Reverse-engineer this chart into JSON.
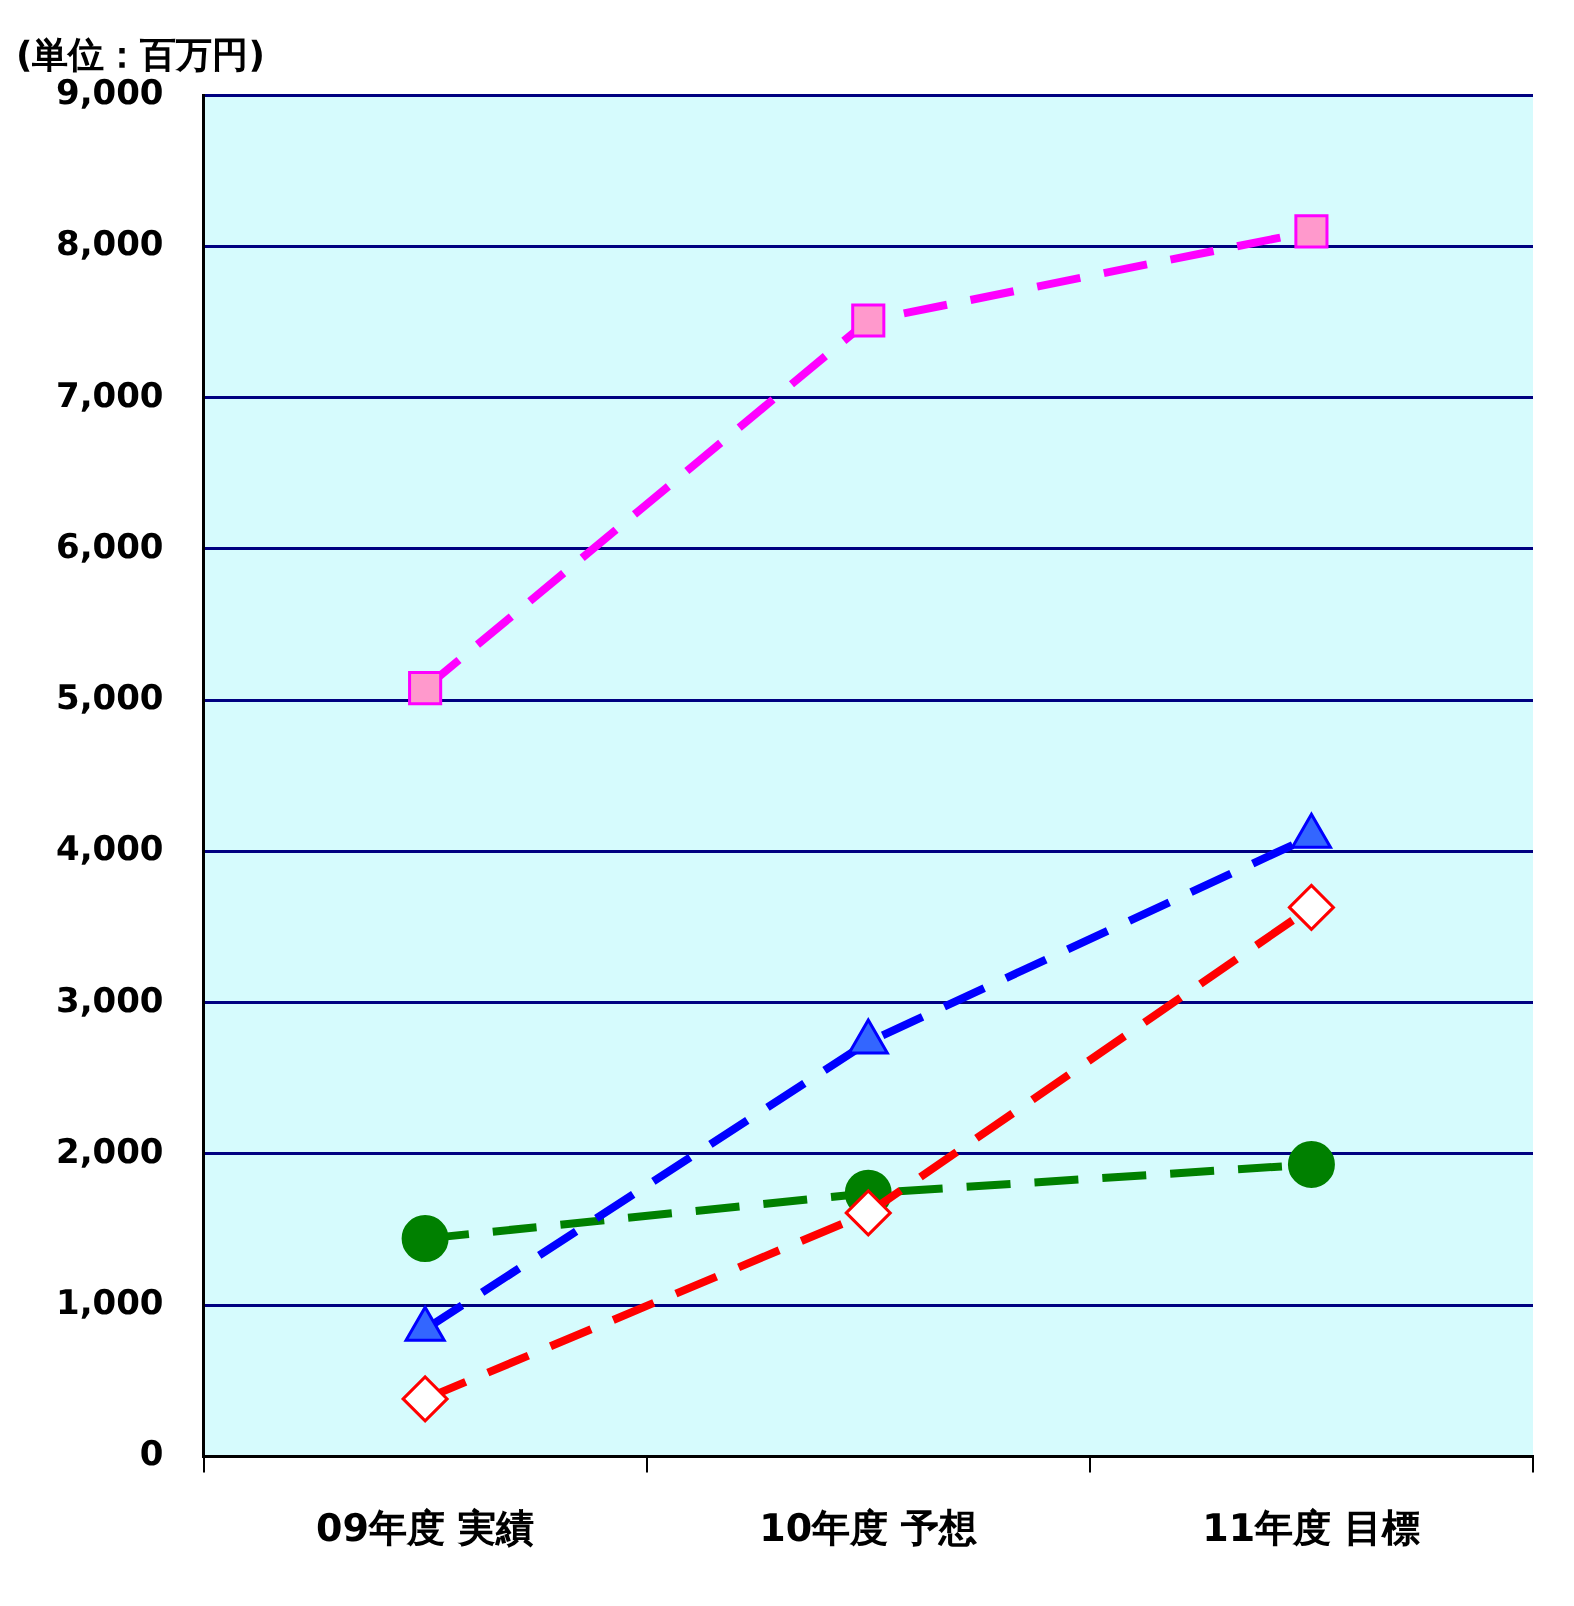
{
  "chart_data": {
    "type": "line",
    "ylabel": "(単位：百万円)",
    "categories": [
      "09年度 実績",
      "10年度 予想",
      "11年度 目標"
    ],
    "series": [
      {
        "color": "#ff00ff",
        "marker": "square",
        "values": [
          5080,
          7510,
          8100
        ]
      },
      {
        "color": "#0000ff",
        "marker": "triangle",
        "values": [
          840,
          2740,
          4100
        ]
      },
      {
        "color": "#ff0000",
        "marker": "diamond",
        "values": [
          380,
          1610,
          3630
        ]
      },
      {
        "color": "#008000",
        "marker": "circle",
        "values": [
          1440,
          1740,
          1930
        ]
      }
    ],
    "ylim": [
      0,
      9000
    ],
    "yticks": [
      0,
      {
        "value": 1000,
        "label": "1,000"
      },
      {
        "value": 2000,
        "label": "2,000"
      },
      {
        "value": 3000,
        "label": "3,000"
      },
      {
        "value": 4000,
        "label": "4,000"
      },
      {
        "value": 5000,
        "label": "5,000"
      },
      {
        "value": 6000,
        "label": "6,000"
      },
      {
        "value": 7000,
        "label": "7,000"
      },
      {
        "value": 8000,
        "label": "8,000"
      },
      {
        "value": 9000,
        "label": "9,000"
      }
    ],
    "grid": "y",
    "legend": false,
    "line_style": "dashed"
  }
}
